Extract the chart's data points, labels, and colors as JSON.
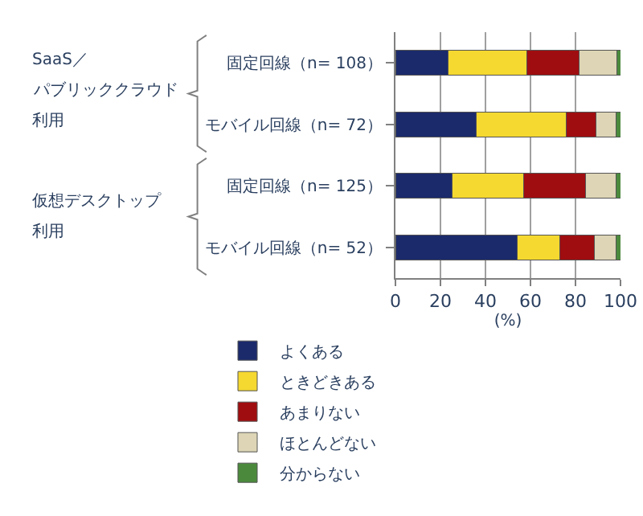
{
  "chart_data": {
    "type": "bar",
    "orientation": "horizontal",
    "stacked": true,
    "categories": [
      "固定回線（n= 108）",
      "モバイル回線（n= 72）",
      "固定回線（n= 125）",
      "モバイル回線（n= 52）"
    ],
    "series": [
      {
        "name": "よくある",
        "color": "#1b2a6b",
        "values": [
          23.5,
          36,
          25,
          54
        ]
      },
      {
        "name": "ときどきある",
        "color": "#f5d830",
        "values": [
          35,
          40,
          32,
          19
        ]
      },
      {
        "name": "あまりない",
        "color": "#a00d10",
        "values": [
          23,
          13,
          27.5,
          15.5
        ]
      },
      {
        "name": "ほとんどない",
        "color": "#ddd5b5",
        "values": [
          17,
          9,
          13.5,
          9.5
        ]
      },
      {
        "name": "分からない",
        "color": "#4b8a3c",
        "values": [
          1.5,
          2,
          2,
          2
        ]
      }
    ],
    "xlabel": "(%)",
    "xlim": [
      0,
      100
    ],
    "xticks": [
      0,
      20,
      40,
      60,
      80,
      100
    ],
    "grid": "x",
    "legend": "bottom",
    "annotations": [
      "SaaS／",
      "パブリッククラウド",
      "利用",
      "仮想デスクトップ",
      "利用"
    ]
  }
}
